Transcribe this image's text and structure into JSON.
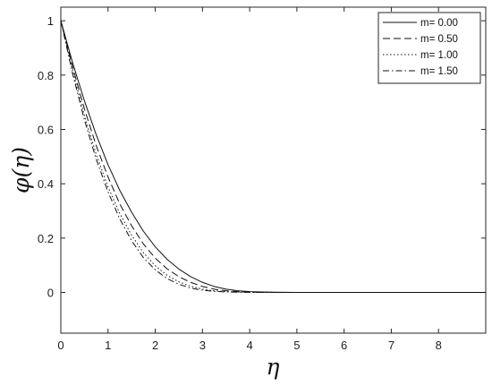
{
  "chart_data": {
    "type": "line",
    "xlabel": "η",
    "ylabel": "φ(η)",
    "xlim": [
      0,
      9
    ],
    "ylim": [
      -0.15,
      1.05
    ],
    "xticks": [
      "0",
      "1",
      "2",
      "3",
      "4",
      "5",
      "6",
      "7",
      "8"
    ],
    "yticks": [
      "0",
      "0.2",
      "0.4",
      "0.6",
      "0.8",
      "1"
    ],
    "grid": false,
    "legend_position": "top-right",
    "x": [
      0,
      0.25,
      0.5,
      0.75,
      1,
      1.25,
      1.5,
      1.75,
      2,
      2.25,
      2.5,
      2.75,
      3,
      3.25,
      3.5,
      3.75,
      4,
      4.25,
      4.5,
      4.75,
      5,
      5.5,
      6,
      7,
      8,
      9
    ],
    "series": [
      {
        "name": "m= 0.00",
        "dash": "solid",
        "values": [
          1.0,
          0.845,
          0.705,
          0.58,
          0.47,
          0.375,
          0.295,
          0.225,
          0.168,
          0.122,
          0.086,
          0.058,
          0.037,
          0.022,
          0.012,
          0.006,
          0.003,
          0.0015,
          0.0007,
          0.0003,
          0.0001,
          0.0,
          0.0,
          0.0,
          0.0,
          0.0
        ]
      },
      {
        "name": "m= 0.50",
        "dash": "dashed",
        "values": [
          1.0,
          0.83,
          0.675,
          0.54,
          0.425,
          0.325,
          0.245,
          0.178,
          0.126,
          0.087,
          0.058,
          0.037,
          0.022,
          0.012,
          0.006,
          0.003,
          0.0013,
          0.0005,
          0.0002,
          0.0001,
          0.0,
          0.0,
          0.0,
          0.0,
          0.0,
          0.0
        ]
      },
      {
        "name": "m= 1.00",
        "dash": "dotted",
        "values": [
          1.0,
          0.815,
          0.65,
          0.508,
          0.388,
          0.29,
          0.21,
          0.146,
          0.098,
          0.063,
          0.039,
          0.023,
          0.012,
          0.006,
          0.003,
          0.0013,
          0.0005,
          0.0002,
          0.0001,
          0.0,
          0.0,
          0.0,
          0.0,
          0.0,
          0.0,
          0.0
        ]
      },
      {
        "name": "m= 1.50",
        "dash": "dashdot",
        "values": [
          1.0,
          0.805,
          0.635,
          0.49,
          0.37,
          0.27,
          0.19,
          0.128,
          0.083,
          0.051,
          0.03,
          0.016,
          0.008,
          0.004,
          0.0018,
          0.0007,
          0.0003,
          0.0001,
          0.0,
          0.0,
          0.0,
          0.0,
          0.0,
          0.0,
          0.0,
          0.0
        ]
      }
    ]
  }
}
